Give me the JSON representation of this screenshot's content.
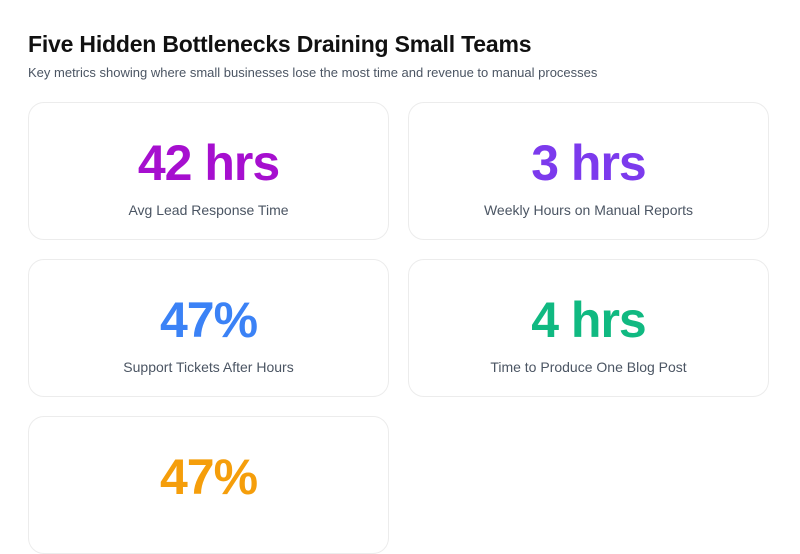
{
  "header": {
    "title": "Five Hidden Bottlenecks Draining Small Teams",
    "subtitle": "Key metrics showing where small businesses lose the most time and revenue to manual processes"
  },
  "cards": [
    {
      "value": "42 hrs",
      "label": "Avg Lead Response Time",
      "color": "#a60fcf"
    },
    {
      "value": "3 hrs",
      "label": "Weekly Hours on Manual Reports",
      "color": "#7c3aed"
    },
    {
      "value": "47%",
      "label": "Support Tickets After Hours",
      "color": "#3b82f6"
    },
    {
      "value": "4 hrs",
      "label": "Time to Produce One Blog Post",
      "color": "#10b981"
    },
    {
      "value": "47%",
      "label": "",
      "color": "#f59e0b"
    }
  ]
}
